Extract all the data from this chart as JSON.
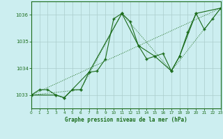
{
  "title": "Graphe pression niveau de la mer (hPa)",
  "bg_color": "#cceef0",
  "plot_bg_color": "#cceef0",
  "line_color": "#1a6b1a",
  "grid_color": "#aacccc",
  "xlim": [
    0,
    23
  ],
  "ylim": [
    1032.5,
    1036.5
  ],
  "yticks": [
    1033,
    1034,
    1035,
    1036
  ],
  "xticks": [
    0,
    1,
    2,
    3,
    4,
    5,
    6,
    7,
    8,
    9,
    10,
    11,
    12,
    13,
    14,
    15,
    16,
    17,
    18,
    19,
    20,
    21,
    22,
    23
  ],
  "series_full": {
    "x": [
      0,
      1,
      2,
      3,
      4,
      5,
      6,
      7,
      8,
      9,
      10,
      11,
      12,
      13,
      14,
      15,
      16,
      17,
      18,
      19,
      20,
      21,
      22,
      23
    ],
    "y": [
      1033.0,
      1033.2,
      1033.2,
      1033.0,
      1032.9,
      1033.2,
      1033.2,
      1033.85,
      1033.9,
      1034.35,
      1035.85,
      1036.05,
      1035.75,
      1034.85,
      1034.35,
      1034.45,
      1034.55,
      1033.9,
      1034.45,
      1035.35,
      1036.05,
      1035.45,
      1035.85,
      1036.25
    ]
  },
  "series_sparse": {
    "x": [
      0,
      3,
      4,
      7,
      11,
      13,
      15,
      17,
      18,
      20,
      23
    ],
    "y": [
      1033.0,
      1033.0,
      1032.9,
      1033.85,
      1036.05,
      1034.85,
      1034.45,
      1033.9,
      1034.45,
      1036.05,
      1036.25
    ]
  },
  "series_coarse": {
    "x": [
      0,
      6,
      11,
      17,
      23
    ],
    "y": [
      1033.0,
      1033.2,
      1036.05,
      1033.9,
      1036.25
    ]
  },
  "series_trend": {
    "x": [
      0,
      23
    ],
    "y": [
      1033.0,
      1036.25
    ]
  }
}
